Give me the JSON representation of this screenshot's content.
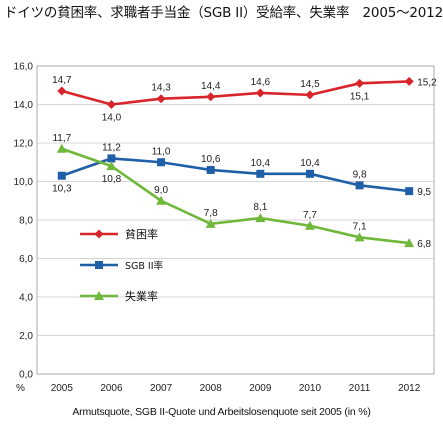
{
  "chart_data": {
    "type": "line",
    "title": "ドイツの貧困率、求職者手当金（SGB II）受給率、失業率　2005～2012年",
    "caption": "Armutsquote, SGB II-Quote und Arbeitslosenquote seit 2005 (in %)",
    "y_unit_label": "%",
    "categories": [
      "2005",
      "2006",
      "2007",
      "2008",
      "2009",
      "2010",
      "2011",
      "2012"
    ],
    "ylim": [
      0,
      16
    ],
    "yticks": [
      "0,0",
      "2,0",
      "4,0",
      "6,0",
      "8,0",
      "10,0",
      "12,0",
      "14,0",
      "16,0"
    ],
    "grid": true,
    "legend_position": "center-left",
    "series": [
      {
        "name": "貧困率",
        "color": "#d7252b",
        "marker": "diamond",
        "values": [
          14.7,
          14.0,
          14.3,
          14.4,
          14.6,
          14.5,
          15.1,
          15.2
        ],
        "labels": [
          "14,7",
          "14,0",
          "14,3",
          "14,4",
          "14,6",
          "14,5",
          "15,1",
          "15,2"
        ]
      },
      {
        "name": "SGB II率",
        "color": "#1f5fa8",
        "marker": "square",
        "values": [
          10.3,
          11.2,
          11.0,
          10.6,
          10.4,
          10.4,
          9.8,
          9.5
        ],
        "labels": [
          "10,3",
          "11,2",
          "11,0",
          "10,6",
          "10,4",
          "10,4",
          "9,8",
          "9,5"
        ]
      },
      {
        "name": "失業率",
        "color": "#6fb83a",
        "marker": "triangle",
        "values": [
          11.7,
          10.8,
          9.0,
          7.8,
          8.1,
          7.7,
          7.1,
          6.8
        ],
        "labels": [
          "11,7",
          "10,8",
          "9,0",
          "7,8",
          "8,1",
          "7,7",
          "7,1",
          "6,8"
        ]
      }
    ]
  }
}
